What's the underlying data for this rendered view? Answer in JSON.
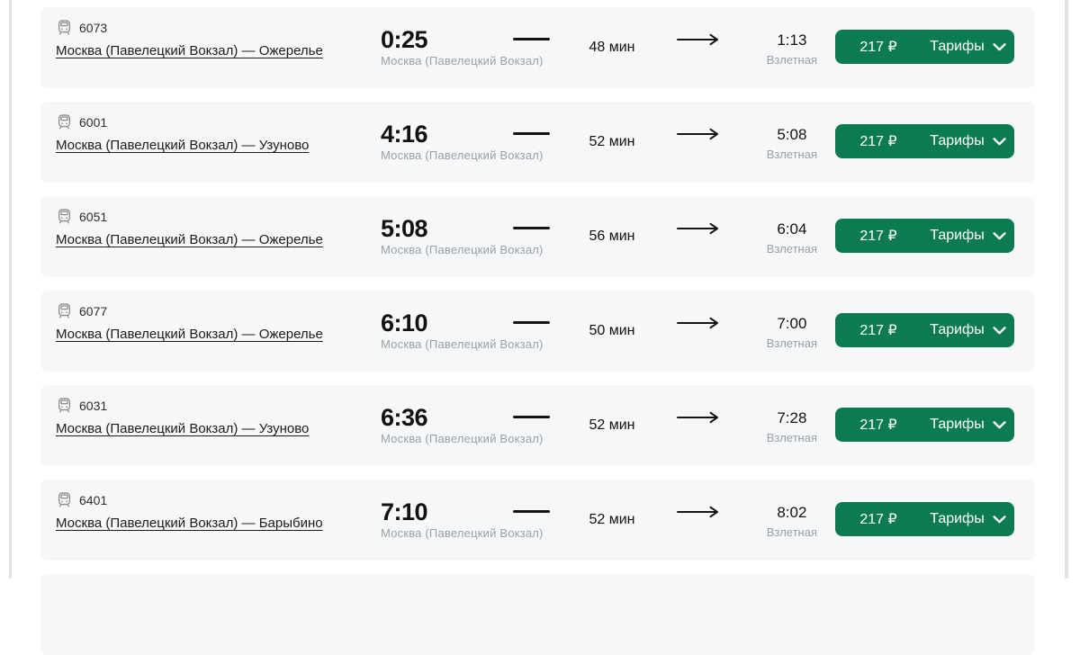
{
  "list": {
    "rows": [
      {
        "train_number": "6073",
        "route": "Москва (Павелецкий Вокзал) — Ожерелье",
        "departure_time": "0:25",
        "departure_station": "Москва (Павелецкий Вокзал)",
        "duration": "48 мин",
        "arrival_time": "1:13",
        "arrival_station": "Взлетная",
        "price": "217 ₽",
        "tariffs_label": "Тарифы"
      },
      {
        "train_number": "6001",
        "route": "Москва (Павелецкий Вокзал) — Узуново",
        "departure_time": "4:16",
        "departure_station": "Москва (Павелецкий Вокзал)",
        "duration": "52 мин",
        "arrival_time": "5:08",
        "arrival_station": "Взлетная",
        "price": "217 ₽",
        "tariffs_label": "Тарифы"
      },
      {
        "train_number": "6051",
        "route": "Москва (Павелецкий Вокзал) — Ожерелье",
        "departure_time": "5:08",
        "departure_station": "Москва (Павелецкий Вокзал)",
        "duration": "56 мин",
        "arrival_time": "6:04",
        "arrival_station": "Взлетная",
        "price": "217 ₽",
        "tariffs_label": "Тарифы"
      },
      {
        "train_number": "6077",
        "route": "Москва (Павелецкий Вокзал) — Ожерелье",
        "departure_time": "6:10",
        "departure_station": "Москва (Павелецкий Вокзал)",
        "duration": "50 мин",
        "arrival_time": "7:00",
        "arrival_station": "Взлетная",
        "price": "217 ₽",
        "tariffs_label": "Тарифы"
      },
      {
        "train_number": "6031",
        "route": "Москва (Павелецкий Вокзал) — Узуново",
        "departure_time": "6:36",
        "departure_station": "Москва (Павелецкий Вокзал)",
        "duration": "52 мин",
        "arrival_time": "7:28",
        "arrival_station": "Взлетная",
        "price": "217 ₽",
        "tariffs_label": "Тарифы"
      },
      {
        "train_number": "6401",
        "route": "Москва (Павелецкий Вокзал) — Барыбино",
        "departure_time": "7:10",
        "departure_station": "Москва (Павелецкий Вокзал)",
        "duration": "52 мин",
        "arrival_time": "8:02",
        "arrival_station": "Взлетная",
        "price": "217 ₽",
        "tariffs_label": "Тарифы"
      }
    ]
  },
  "icons": {
    "train": "train-front-icon",
    "arrow": "arrow-right-icon",
    "chevron": "chevron-down-icon"
  },
  "colors": {
    "accent_green": "#0d7b50",
    "card_bg": "#f6f7f9",
    "sub_text_gray": "#9aa0a6"
  }
}
